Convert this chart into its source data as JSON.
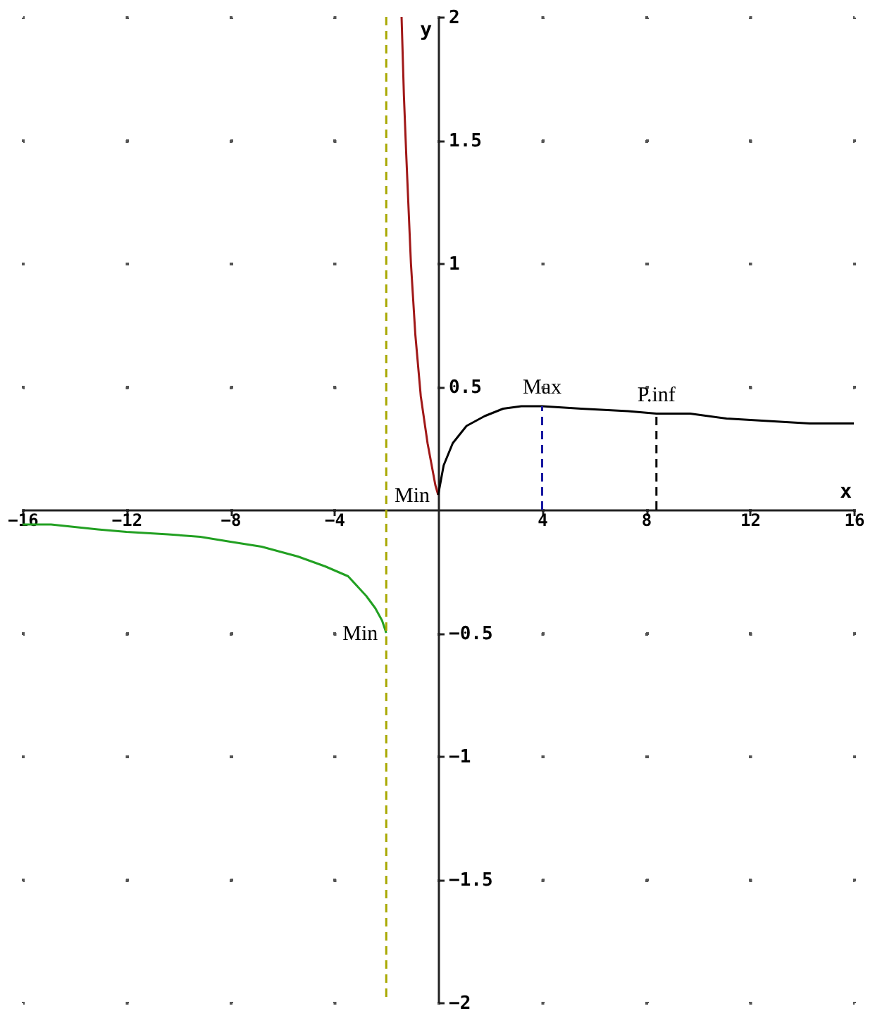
{
  "chart_data": {
    "type": "line",
    "xlabel": "x",
    "ylabel": "y",
    "xlim": [
      -16,
      16
    ],
    "ylim": [
      -2,
      2
    ],
    "xticks": [
      -16,
      -12,
      -8,
      -4,
      4,
      8,
      12,
      16
    ],
    "yticks": [
      -2,
      -1.5,
      -1,
      -0.5,
      0.5,
      1,
      1.5,
      2
    ],
    "grid": true,
    "series": [
      {
        "color": "#22a022",
        "x": [
          -16,
          -14.9,
          -13.1,
          -12,
          -10.4,
          -9.16,
          -8,
          -6.8,
          -5.4,
          -4.35,
          -3.47,
          -2.77,
          -2.42,
          -2.16,
          -2
        ],
        "values": [
          -0.06,
          -0.06,
          -0.08,
          -0.09,
          -0.1,
          -0.11,
          -0.13,
          -0.15,
          -0.19,
          -0.23,
          -0.27,
          -0.35,
          -0.4,
          -0.45,
          -0.5
        ]
      },
      {
        "color": "#a01818",
        "x": [
          -1.41,
          -1.32,
          -1.23,
          -1.05,
          -0.88,
          -0.67,
          -0.41,
          -0.11,
          0
        ],
        "values": [
          2,
          1.68,
          1.44,
          1.0,
          0.71,
          0.46,
          0.27,
          0.1,
          0.06
        ]
      },
      {
        "color": "#000000",
        "x": [
          0,
          0.21,
          0.56,
          1.09,
          1.79,
          2.5,
          3.2,
          4,
          5.5,
          7.3,
          8.4,
          9.7,
          11.1,
          12.7,
          14.3,
          16
        ],
        "values": [
          0.06,
          0.18,
          0.27,
          0.34,
          0.38,
          0.41,
          0.42,
          0.42,
          0.41,
          0.4,
          0.39,
          0.39,
          0.37,
          0.36,
          0.35,
          0.35
        ]
      },
      {
        "color": "#1818a0",
        "line_style": "dashed",
        "x": [
          4,
          4
        ],
        "values": [
          0,
          0.42
        ]
      },
      {
        "color": "#000000",
        "line_style": "dashed",
        "x": [
          8.4,
          8.4
        ],
        "values": [
          0,
          0.39
        ]
      }
    ],
    "ref_lines": [
      {
        "axis": "x",
        "value": -2,
        "color": "#a8a800",
        "line_style": "dashed"
      }
    ],
    "annotations": [
      {
        "text": "Max",
        "x": 4,
        "y": 0.42
      },
      {
        "text": "P.inf",
        "x": 8.4,
        "y": 0.39
      },
      {
        "text": "Min",
        "x": 0,
        "y": 0.06
      },
      {
        "text": "Min",
        "x": -2,
        "y": -0.5
      }
    ]
  }
}
